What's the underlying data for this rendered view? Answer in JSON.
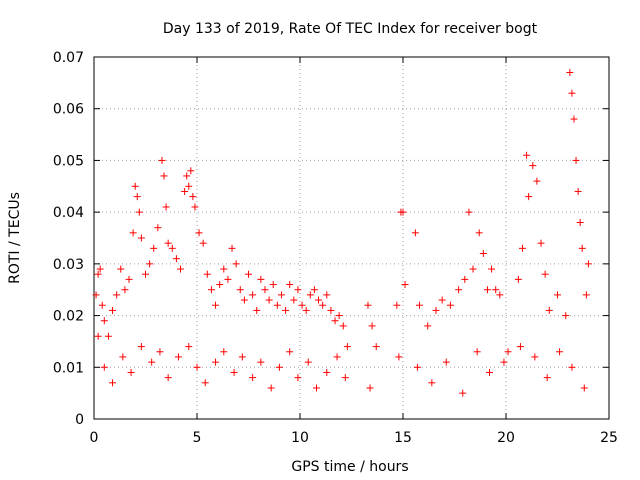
{
  "chart_data": {
    "type": "scatter",
    "title": "Day 133 of 2019, Rate Of TEC Index for receiver bogt",
    "xlabel": "GPS time / hours",
    "ylabel": "ROTI / TECUs",
    "xlim": [
      0,
      25
    ],
    "ylim": [
      0,
      0.07
    ],
    "xticks": [
      0,
      5,
      10,
      15,
      20,
      25
    ],
    "yticks": [
      0,
      0.01,
      0.02,
      0.03,
      0.04,
      0.05,
      0.06,
      0.07
    ],
    "xtick_labels": [
      "0",
      "5",
      "10",
      "15",
      "20",
      "25"
    ],
    "ytick_labels": [
      "0",
      "0.01",
      "0.02",
      "0.03",
      "0.04",
      "0.05",
      "0.06",
      "0.07"
    ],
    "grid": true,
    "marker": "+",
    "marker_color": "#ff0000",
    "series": [
      {
        "name": "ROTI",
        "points": [
          [
            0.1,
            0.024
          ],
          [
            0.2,
            0.028
          ],
          [
            0.3,
            0.029
          ],
          [
            0.4,
            0.022
          ],
          [
            0.5,
            0.019
          ],
          [
            0.7,
            0.016
          ],
          [
            0.9,
            0.021
          ],
          [
            1.1,
            0.024
          ],
          [
            1.3,
            0.029
          ],
          [
            1.5,
            0.025
          ],
          [
            1.7,
            0.027
          ],
          [
            1.9,
            0.036
          ],
          [
            2.0,
            0.045
          ],
          [
            2.1,
            0.043
          ],
          [
            2.2,
            0.04
          ],
          [
            2.3,
            0.035
          ],
          [
            2.5,
            0.028
          ],
          [
            2.7,
            0.03
          ],
          [
            2.9,
            0.033
          ],
          [
            3.1,
            0.037
          ],
          [
            3.3,
            0.05
          ],
          [
            3.4,
            0.047
          ],
          [
            3.5,
            0.041
          ],
          [
            3.6,
            0.034
          ],
          [
            3.8,
            0.033
          ],
          [
            4.0,
            0.031
          ],
          [
            4.2,
            0.029
          ],
          [
            4.4,
            0.044
          ],
          [
            4.5,
            0.047
          ],
          [
            4.6,
            0.045
          ],
          [
            4.7,
            0.048
          ],
          [
            4.8,
            0.043
          ],
          [
            4.9,
            0.041
          ],
          [
            5.1,
            0.036
          ],
          [
            5.3,
            0.034
          ],
          [
            5.5,
            0.028
          ],
          [
            5.7,
            0.025
          ],
          [
            5.9,
            0.022
          ],
          [
            6.1,
            0.026
          ],
          [
            6.3,
            0.029
          ],
          [
            6.5,
            0.027
          ],
          [
            6.7,
            0.033
          ],
          [
            6.9,
            0.03
          ],
          [
            7.1,
            0.025
          ],
          [
            7.3,
            0.023
          ],
          [
            7.5,
            0.028
          ],
          [
            7.7,
            0.024
          ],
          [
            7.9,
            0.021
          ],
          [
            8.1,
            0.027
          ],
          [
            8.3,
            0.025
          ],
          [
            8.5,
            0.023
          ],
          [
            8.7,
            0.026
          ],
          [
            8.9,
            0.022
          ],
          [
            9.1,
            0.024
          ],
          [
            9.3,
            0.021
          ],
          [
            9.5,
            0.026
          ],
          [
            9.7,
            0.023
          ],
          [
            9.9,
            0.025
          ],
          [
            10.1,
            0.022
          ],
          [
            10.3,
            0.021
          ],
          [
            10.5,
            0.024
          ],
          [
            10.7,
            0.025
          ],
          [
            10.9,
            0.023
          ],
          [
            11.1,
            0.022
          ],
          [
            11.3,
            0.024
          ],
          [
            11.5,
            0.021
          ],
          [
            11.7,
            0.019
          ],
          [
            11.9,
            0.02
          ],
          [
            12.1,
            0.018
          ],
          [
            12.3,
            0.014
          ],
          [
            13.3,
            0.022
          ],
          [
            13.5,
            0.018
          ],
          [
            13.7,
            0.014
          ],
          [
            14.7,
            0.022
          ],
          [
            14.9,
            0.04
          ],
          [
            15.0,
            0.04
          ],
          [
            15.1,
            0.026
          ],
          [
            15.6,
            0.036
          ],
          [
            15.8,
            0.022
          ],
          [
            16.2,
            0.018
          ],
          [
            16.6,
            0.021
          ],
          [
            16.9,
            0.023
          ],
          [
            17.3,
            0.022
          ],
          [
            17.7,
            0.025
          ],
          [
            18.0,
            0.027
          ],
          [
            18.2,
            0.04
          ],
          [
            18.4,
            0.029
          ],
          [
            18.7,
            0.036
          ],
          [
            18.9,
            0.032
          ],
          [
            19.1,
            0.025
          ],
          [
            19.3,
            0.029
          ],
          [
            19.5,
            0.025
          ],
          [
            19.7,
            0.024
          ],
          [
            20.1,
            0.013
          ],
          [
            20.6,
            0.027
          ],
          [
            20.8,
            0.033
          ],
          [
            21.0,
            0.051
          ],
          [
            21.1,
            0.043
          ],
          [
            21.3,
            0.049
          ],
          [
            21.5,
            0.046
          ],
          [
            21.7,
            0.034
          ],
          [
            21.9,
            0.028
          ],
          [
            22.1,
            0.021
          ],
          [
            22.5,
            0.024
          ],
          [
            22.9,
            0.02
          ],
          [
            23.1,
            0.067
          ],
          [
            23.2,
            0.063
          ],
          [
            23.3,
            0.058
          ],
          [
            23.4,
            0.05
          ],
          [
            23.5,
            0.044
          ],
          [
            23.6,
            0.038
          ],
          [
            23.7,
            0.033
          ],
          [
            23.9,
            0.024
          ],
          [
            24.0,
            0.03
          ],
          [
            0.2,
            0.016
          ],
          [
            0.5,
            0.01
          ],
          [
            0.9,
            0.007
          ],
          [
            1.4,
            0.012
          ],
          [
            1.8,
            0.009
          ],
          [
            2.3,
            0.014
          ],
          [
            2.8,
            0.011
          ],
          [
            3.2,
            0.013
          ],
          [
            3.6,
            0.008
          ],
          [
            4.1,
            0.012
          ],
          [
            4.6,
            0.014
          ],
          [
            5.0,
            0.01
          ],
          [
            5.4,
            0.007
          ],
          [
            5.9,
            0.011
          ],
          [
            6.3,
            0.013
          ],
          [
            6.8,
            0.009
          ],
          [
            7.2,
            0.012
          ],
          [
            7.7,
            0.008
          ],
          [
            8.1,
            0.011
          ],
          [
            8.6,
            0.006
          ],
          [
            9.0,
            0.01
          ],
          [
            9.5,
            0.013
          ],
          [
            9.9,
            0.008
          ],
          [
            10.4,
            0.011
          ],
          [
            10.8,
            0.006
          ],
          [
            11.3,
            0.009
          ],
          [
            11.8,
            0.012
          ],
          [
            12.2,
            0.008
          ],
          [
            13.4,
            0.006
          ],
          [
            14.8,
            0.012
          ],
          [
            15.7,
            0.01
          ],
          [
            16.4,
            0.007
          ],
          [
            17.1,
            0.011
          ],
          [
            17.9,
            0.005
          ],
          [
            18.6,
            0.013
          ],
          [
            19.2,
            0.009
          ],
          [
            19.9,
            0.011
          ],
          [
            20.7,
            0.014
          ],
          [
            21.4,
            0.012
          ],
          [
            22.0,
            0.008
          ],
          [
            22.6,
            0.013
          ],
          [
            23.2,
            0.01
          ],
          [
            23.8,
            0.006
          ]
        ]
      }
    ]
  }
}
